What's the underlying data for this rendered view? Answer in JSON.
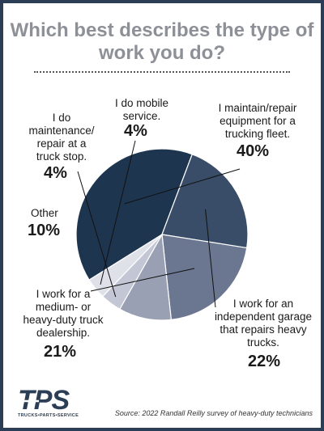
{
  "chart_data": {
    "type": "pie",
    "title": "Which best describes the type of work you do?",
    "slices": [
      {
        "label": "I maintain/repair equipment for a trucking fleet.",
        "value": 40,
        "pct_label": "40%",
        "color": "#1e3550"
      },
      {
        "label": "I work for an independent garage that repairs heavy trucks.",
        "value": 22,
        "pct_label": "22%",
        "color": "#3a4d68"
      },
      {
        "label": "I work for a medium- or heavy-duty truck dealership.",
        "value": 21,
        "pct_label": "21%",
        "color": "#6b7690"
      },
      {
        "label": "Other",
        "value": 10,
        "pct_label": "10%",
        "color": "#9aa0b3"
      },
      {
        "label": "I do maintenance/ repair at a truck stop.",
        "value": 4,
        "pct_label": "4%",
        "color": "#c3c6d4"
      },
      {
        "label": "I do mobile service.",
        "value": 4,
        "pct_label": "4%",
        "color": "#dfe1e9"
      }
    ]
  },
  "labels": {
    "fleet": [
      "I maintain/repair",
      "equipment for a",
      "trucking fleet."
    ],
    "garage": [
      "I work for an",
      "independent garage",
      "that repairs heavy",
      "trucks."
    ],
    "dealer": [
      "I work for a",
      "medium- or",
      "heavy-duty truck",
      "dealership."
    ],
    "other": [
      "Other"
    ],
    "truckstop": [
      "I do",
      "maintenance/",
      "repair at a",
      "truck stop."
    ],
    "mobile": [
      "I do mobile",
      "service."
    ]
  },
  "brand": {
    "logo": "TPS",
    "tagline": "TRUCKS•PARTS•SERVICE"
  },
  "source": "Source: 2022 Randall Reilly survey of heavy-duty technicians"
}
